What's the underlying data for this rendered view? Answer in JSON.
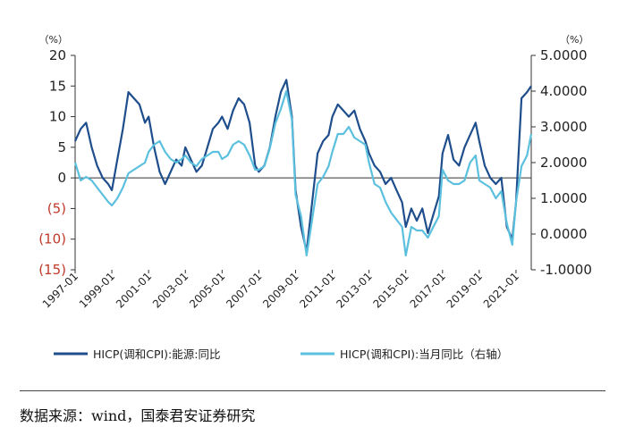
{
  "chart_data": {
    "type": "line",
    "left_axis": {
      "unit": "（%）",
      "ylim": [
        -15,
        20
      ],
      "ticks": [
        20,
        15,
        10,
        5,
        0,
        -5,
        -10,
        -15
      ],
      "tick_labels": [
        "20",
        "15",
        "10",
        "5",
        "0",
        "(5)",
        "(10)",
        "(15)"
      ]
    },
    "right_axis": {
      "unit": "（%）",
      "ylim": [
        -1,
        5
      ],
      "ticks": [
        5,
        4,
        3,
        2,
        1,
        0,
        -1
      ],
      "tick_labels": [
        "5.0000",
        "4.0000",
        "3.0000",
        "2.0000",
        "1.0000",
        "0.0000",
        "-1.0000"
      ]
    },
    "x_ticks": [
      "1997-01",
      "1999-01",
      "2001-01",
      "2003-01",
      "2005-01",
      "2007-01",
      "2009-01",
      "2011-01",
      "2013-01",
      "2015-01",
      "2017-01",
      "2019-01",
      "2021-01"
    ],
    "xlim": [
      1997.0,
      2021.83
    ],
    "series": [
      {
        "name": "HICP(调和CPI):能源:同比",
        "axis": "left",
        "color": "#1f4e8c",
        "x": [
          1997.0,
          1997.3,
          1997.6,
          1997.9,
          1998.2,
          1998.5,
          1998.8,
          1999.0,
          1999.3,
          1999.6,
          1999.9,
          2000.2,
          2000.5,
          2000.8,
          2001.0,
          2001.3,
          2001.6,
          2001.9,
          2002.2,
          2002.5,
          2002.8,
          2003.0,
          2003.3,
          2003.6,
          2003.9,
          2004.2,
          2004.5,
          2004.8,
          2005.0,
          2005.3,
          2005.6,
          2005.9,
          2006.2,
          2006.5,
          2006.8,
          2007.0,
          2007.3,
          2007.6,
          2007.9,
          2008.2,
          2008.5,
          2008.8,
          2009.0,
          2009.3,
          2009.6,
          2009.9,
          2010.2,
          2010.5,
          2010.8,
          2011.0,
          2011.3,
          2011.6,
          2011.9,
          2012.2,
          2012.5,
          2012.8,
          2013.0,
          2013.3,
          2013.6,
          2013.9,
          2014.2,
          2014.5,
          2014.8,
          2015.0,
          2015.3,
          2015.6,
          2015.9,
          2016.2,
          2016.5,
          2016.8,
          2017.0,
          2017.3,
          2017.6,
          2017.9,
          2018.2,
          2018.5,
          2018.8,
          2019.0,
          2019.3,
          2019.6,
          2019.9,
          2020.2,
          2020.5,
          2020.8,
          2021.0,
          2021.3,
          2021.6,
          2021.83
        ],
        "y": [
          6,
          8,
          9,
          5,
          2,
          0,
          -1,
          -2,
          3,
          8,
          14,
          13,
          12,
          9,
          10,
          5,
          1,
          -1,
          1,
          3,
          2,
          5,
          3,
          1,
          2,
          5,
          8,
          9,
          10,
          8,
          11,
          13,
          12,
          9,
          2,
          1,
          2,
          5,
          10,
          14,
          16,
          10,
          -2,
          -8,
          -12,
          -4,
          4,
          6,
          7,
          10,
          12,
          11,
          10,
          11,
          8,
          6,
          4,
          2,
          1,
          -1,
          0,
          -2,
          -4,
          -8,
          -5,
          -7,
          -5,
          -9,
          -6,
          -3,
          4,
          7,
          3,
          2,
          5,
          7,
          9,
          6,
          2,
          0,
          -1,
          0,
          -8,
          -10,
          -4,
          13,
          14,
          15
        ]
      },
      {
        "name": "HICP(调和CPI):当月同比（右轴）",
        "axis": "right",
        "color": "#5bc0de",
        "x": [
          1997.0,
          1997.3,
          1997.6,
          1997.9,
          1998.2,
          1998.5,
          1998.8,
          1999.0,
          1999.3,
          1999.6,
          1999.9,
          2000.2,
          2000.5,
          2000.8,
          2001.0,
          2001.3,
          2001.6,
          2001.9,
          2002.2,
          2002.5,
          2002.8,
          2003.0,
          2003.3,
          2003.6,
          2003.9,
          2004.2,
          2004.5,
          2004.8,
          2005.0,
          2005.3,
          2005.6,
          2005.9,
          2006.2,
          2006.5,
          2006.8,
          2007.0,
          2007.3,
          2007.6,
          2007.9,
          2008.2,
          2008.5,
          2008.8,
          2009.0,
          2009.3,
          2009.6,
          2009.9,
          2010.2,
          2010.5,
          2010.8,
          2011.0,
          2011.3,
          2011.6,
          2011.9,
          2012.2,
          2012.5,
          2012.8,
          2013.0,
          2013.3,
          2013.6,
          2013.9,
          2014.2,
          2014.5,
          2014.8,
          2015.0,
          2015.3,
          2015.6,
          2015.9,
          2016.2,
          2016.5,
          2016.8,
          2017.0,
          2017.3,
          2017.6,
          2017.9,
          2018.2,
          2018.5,
          2018.8,
          2019.0,
          2019.3,
          2019.6,
          2019.9,
          2020.2,
          2020.5,
          2020.8,
          2021.0,
          2021.3,
          2021.6,
          2021.83
        ],
        "y": [
          2.0,
          1.5,
          1.6,
          1.5,
          1.3,
          1.1,
          0.9,
          0.8,
          1.0,
          1.3,
          1.7,
          1.8,
          1.9,
          2.0,
          2.3,
          2.5,
          2.6,
          2.3,
          2.1,
          2.0,
          2.1,
          2.2,
          2.0,
          1.9,
          2.1,
          2.2,
          2.3,
          2.3,
          2.1,
          2.2,
          2.5,
          2.6,
          2.5,
          2.2,
          1.8,
          1.8,
          1.9,
          2.4,
          3.1,
          3.5,
          4.0,
          3.2,
          1.1,
          0.5,
          -0.6,
          0.4,
          1.4,
          1.6,
          1.9,
          2.3,
          2.8,
          2.8,
          3.0,
          2.7,
          2.6,
          2.5,
          2.0,
          1.4,
          1.3,
          0.9,
          0.6,
          0.4,
          0.2,
          -0.6,
          0.2,
          0.1,
          0.1,
          -0.1,
          0.2,
          0.5,
          1.8,
          1.5,
          1.4,
          1.4,
          1.5,
          2.0,
          2.2,
          1.5,
          1.4,
          1.3,
          1.0,
          1.2,
          0.3,
          -0.3,
          0.9,
          1.9,
          2.2,
          2.8
        ]
      }
    ]
  },
  "source": "数据来源：wind，国泰君安证券研究"
}
